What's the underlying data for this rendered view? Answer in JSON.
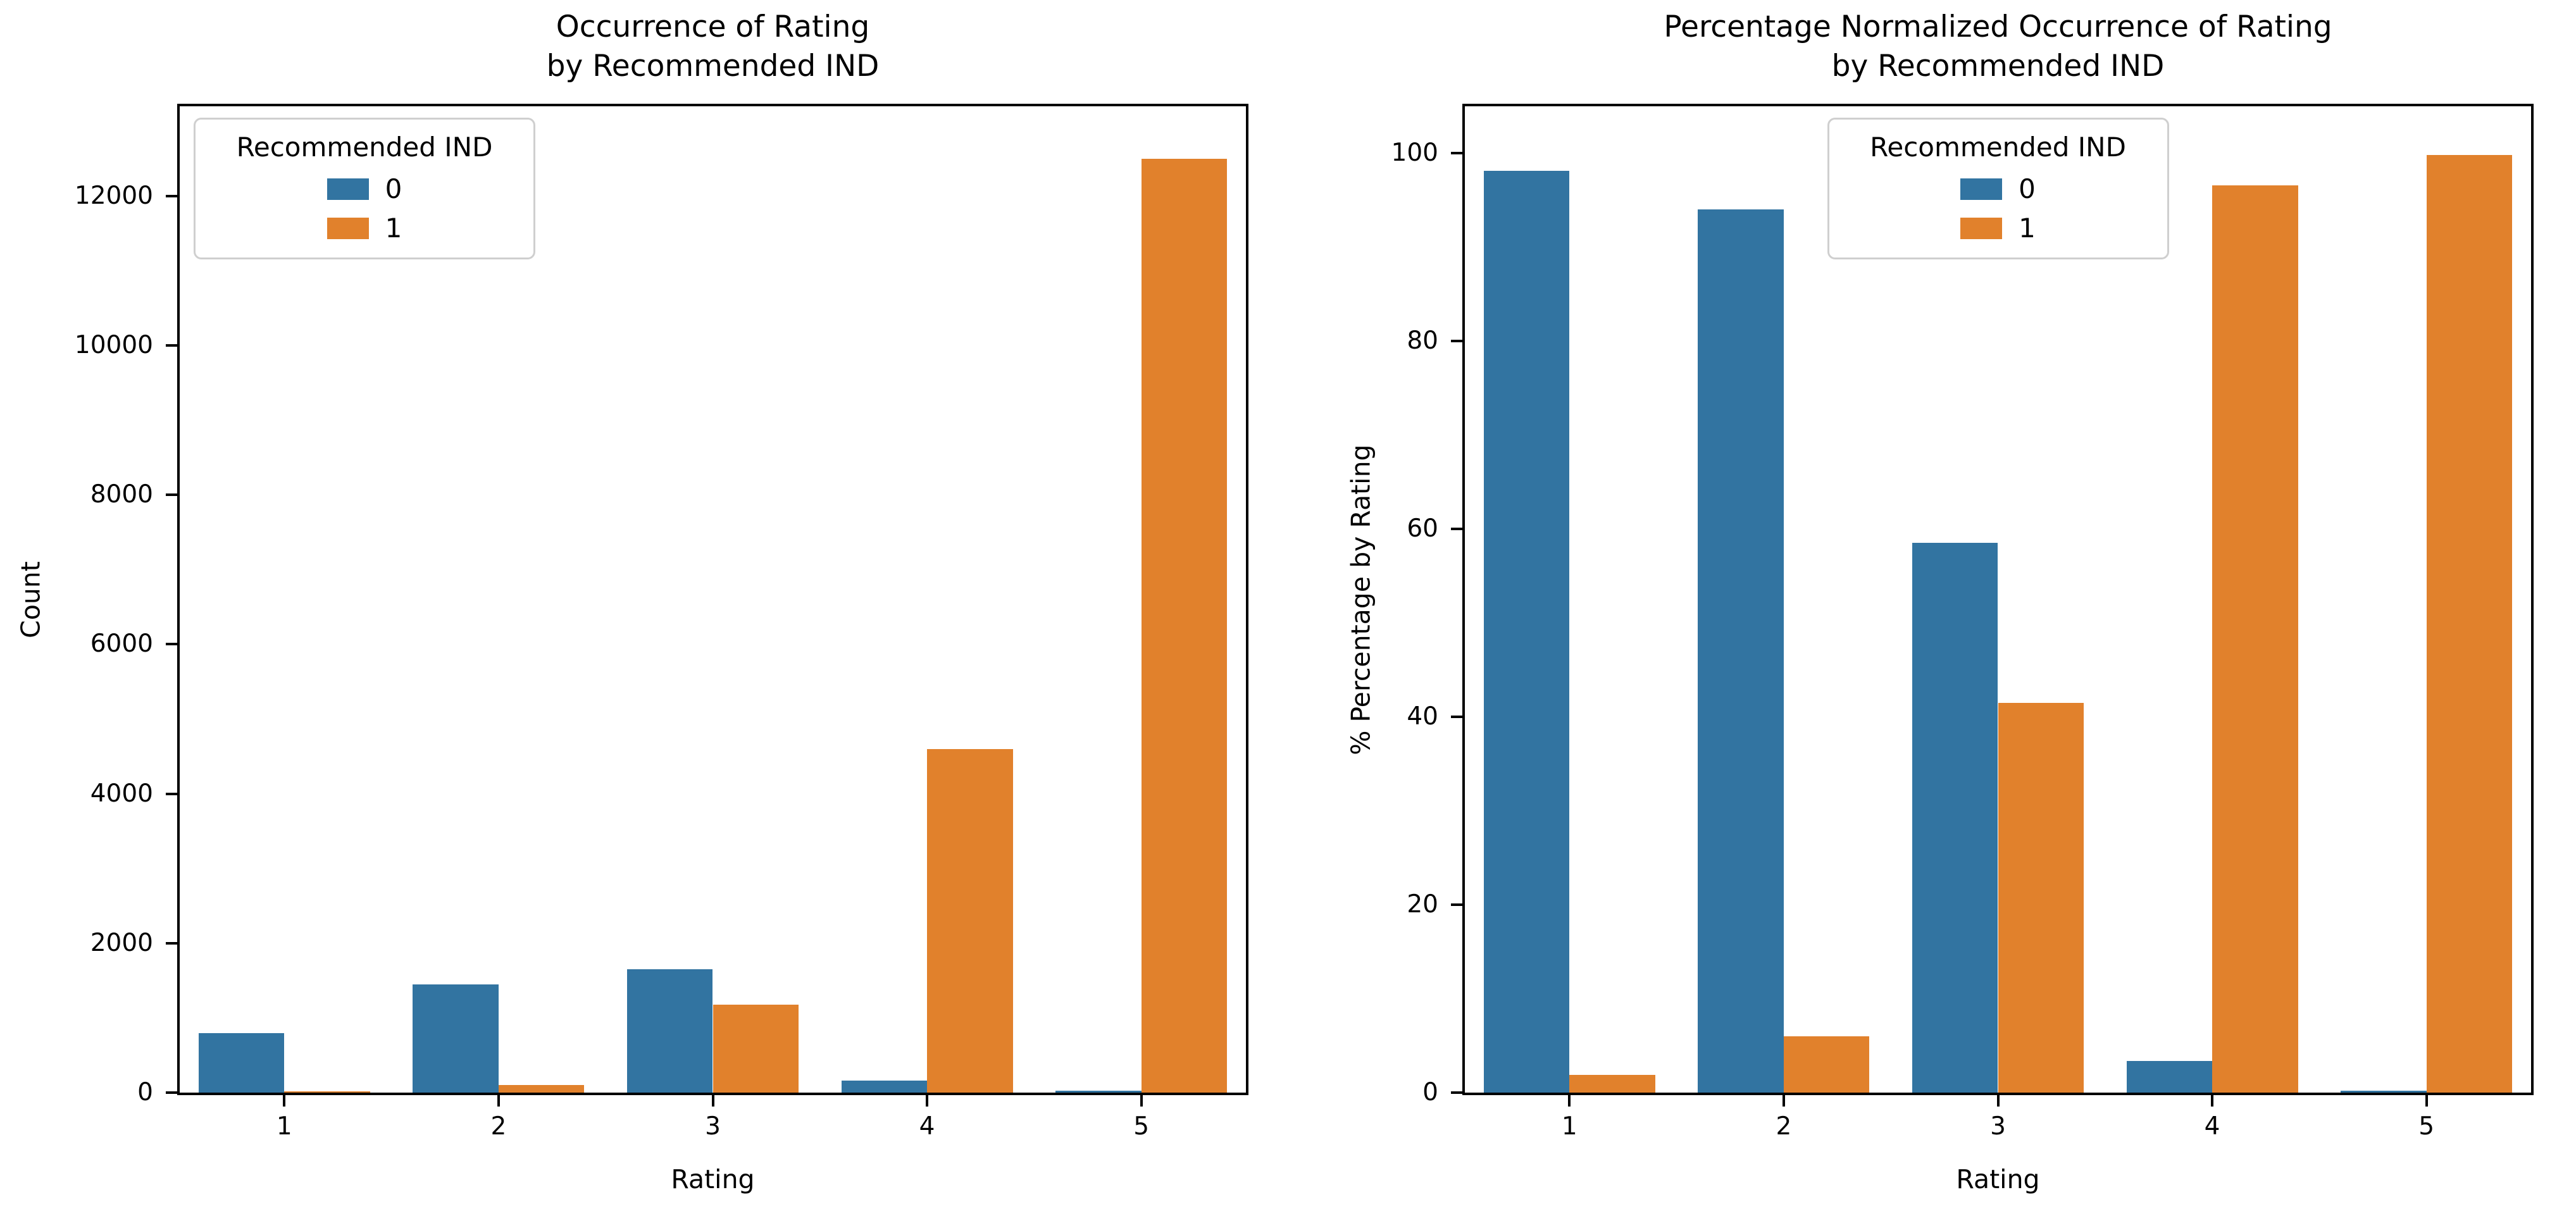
{
  "figure": {
    "background": "#ffffff",
    "text_color": "#000000"
  },
  "chart_data": [
    {
      "type": "bar",
      "title": "Occurrence of Rating\nby Recommended IND",
      "title_lines": [
        "Occurrence of Rating",
        "by Recommended IND"
      ],
      "xlabel": "Rating",
      "ylabel": "Count",
      "categories": [
        "1",
        "2",
        "3",
        "4",
        "5"
      ],
      "series": [
        {
          "name": "0",
          "color": "#3274a1",
          "values": [
            800,
            1450,
            1650,
            160,
            25
          ]
        },
        {
          "name": "1",
          "color": "#e1812c",
          "values": [
            15,
            100,
            1175,
            4600,
            12500
          ]
        }
      ],
      "ylim": [
        0,
        13200
      ],
      "yticks": [
        0,
        2000,
        4000,
        6000,
        8000,
        10000,
        12000
      ],
      "grid": false,
      "legend": {
        "title": "Recommended IND",
        "position": "upper-left"
      }
    },
    {
      "type": "bar",
      "title": "Percentage Normalized Occurrence of Rating\nby Recommended IND",
      "title_lines": [
        "Percentage Normalized Occurrence of Rating",
        "by Recommended IND"
      ],
      "xlabel": "Rating",
      "ylabel": "% Percentage by Rating",
      "categories": [
        "1",
        "2",
        "3",
        "4",
        "5"
      ],
      "series": [
        {
          "name": "0",
          "color": "#3274a1",
          "values": [
            98.1,
            94.0,
            58.5,
            3.4,
            0.2
          ]
        },
        {
          "name": "1",
          "color": "#e1812c",
          "values": [
            1.9,
            6.0,
            41.5,
            96.6,
            99.8
          ]
        }
      ],
      "ylim": [
        0,
        105
      ],
      "yticks": [
        0,
        20,
        40,
        60,
        80,
        100
      ],
      "grid": false,
      "legend": {
        "title": "Recommended IND",
        "position": "upper-center"
      }
    }
  ]
}
